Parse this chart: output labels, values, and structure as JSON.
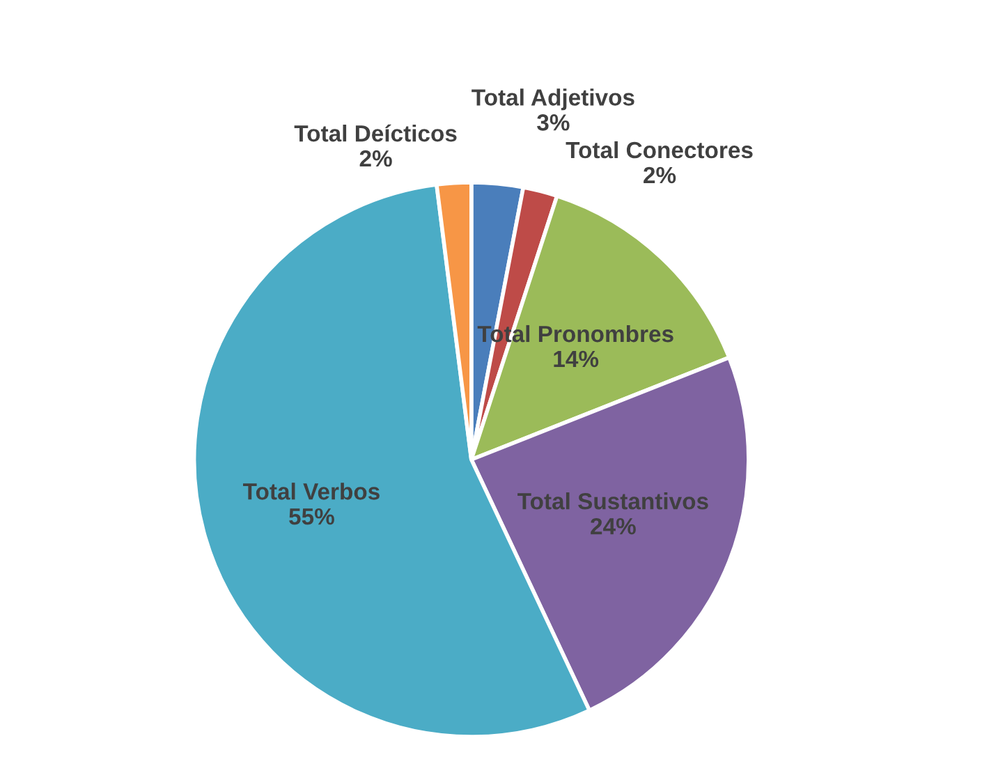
{
  "chart_data": {
    "type": "pie",
    "categories": [
      "Total Adjetivos",
      "Total Conectores",
      "Total Pronombres",
      "Total Sustantivos",
      "Total Verbos",
      "Total Deícticos"
    ],
    "values": [
      3,
      2,
      14,
      24,
      55,
      2
    ],
    "colors": [
      "#4a7ebb",
      "#be4b48",
      "#9bbb59",
      "#7f63a1",
      "#4bacc6",
      "#f79646"
    ],
    "value_labels": [
      "3%",
      "2%",
      "14%",
      "24%",
      "55%",
      "2%"
    ],
    "legend": false
  }
}
